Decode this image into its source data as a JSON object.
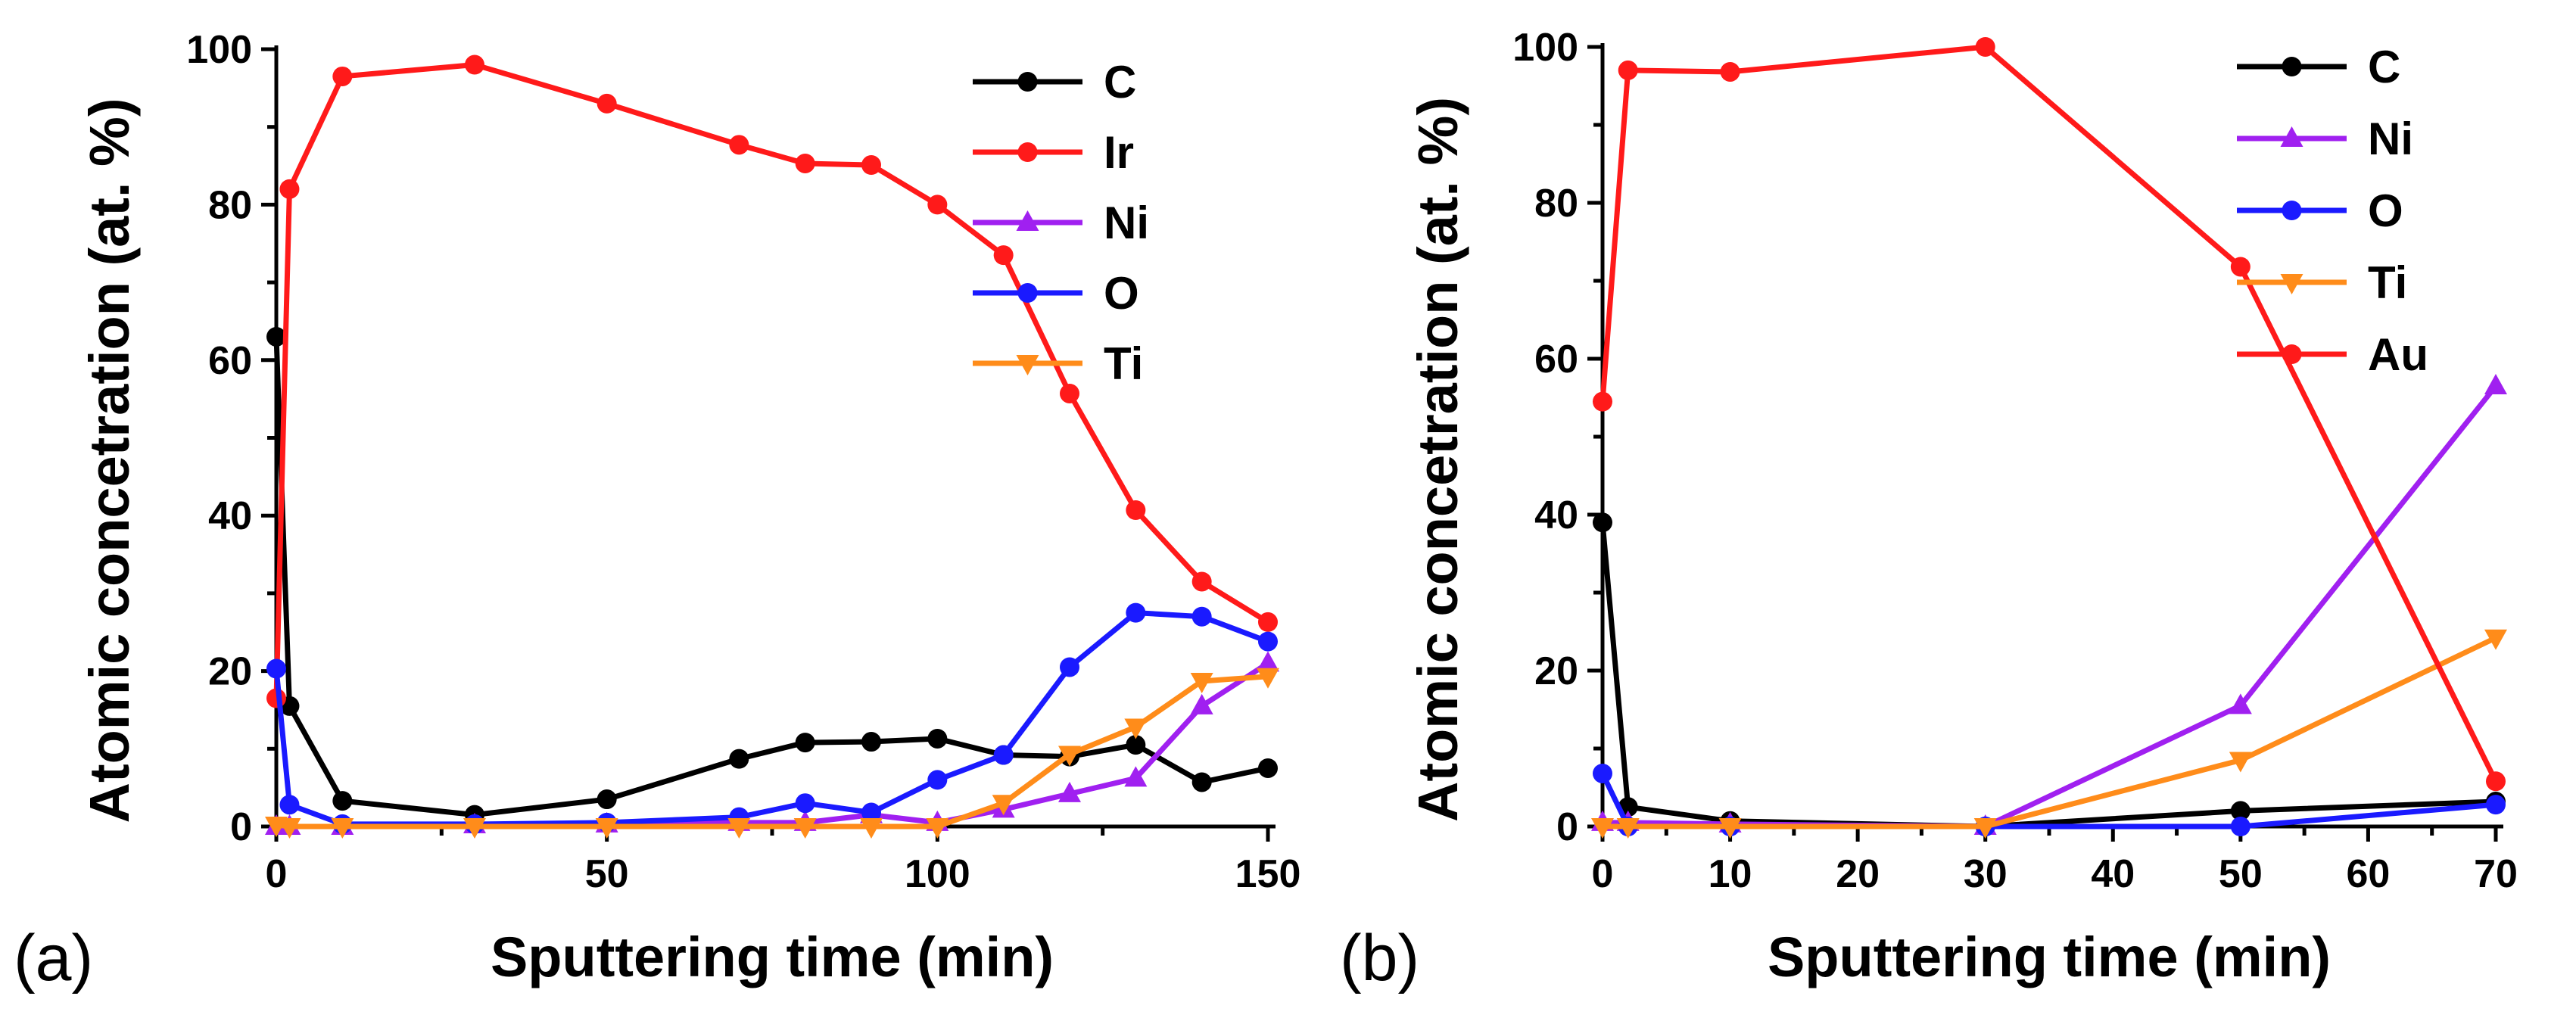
{
  "chart_data": [
    {
      "type": "line",
      "panel_label": "(a)",
      "xlabel": "Sputtering time (min)",
      "ylabel": "Atomic concetration (at. %)",
      "xlim": [
        0,
        150
      ],
      "ylim": [
        0,
        100
      ],
      "xticks": [
        0,
        50,
        100,
        150
      ],
      "yticks": [
        0,
        20,
        40,
        60,
        80,
        100
      ],
      "xtick_labels": [
        "0",
        "50",
        "100",
        "150"
      ],
      "ytick_labels": [
        "0",
        "20",
        "40",
        "60",
        "80",
        "100"
      ],
      "legend": "top-right",
      "series": [
        {
          "name": "C",
          "color": "#000000",
          "marker": "circle",
          "x": [
            0,
            2,
            10,
            30,
            50,
            70,
            80,
            90,
            100,
            110,
            120,
            130,
            140,
            150
          ],
          "y": [
            63,
            15.5,
            3.3,
            1.5,
            3.5,
            8.7,
            10.8,
            10.9,
            11.3,
            9.2,
            9.0,
            10.5,
            5.7,
            7.5
          ]
        },
        {
          "name": "Ir",
          "color": "#ff1a1a",
          "marker": "circle",
          "x": [
            0,
            2,
            10,
            30,
            50,
            70,
            80,
            90,
            100,
            110,
            120,
            130,
            140,
            150
          ],
          "y": [
            16.5,
            82,
            96.5,
            98,
            93,
            87.7,
            85.3,
            85.1,
            80,
            73.5,
            55.7,
            40.7,
            31.5,
            26.3
          ]
        },
        {
          "name": "Ni",
          "color": "#a020f0",
          "marker": "triangle-up",
          "x": [
            0,
            2,
            10,
            30,
            50,
            70,
            80,
            90,
            100,
            110,
            120,
            130,
            140,
            150
          ],
          "y": [
            0,
            0,
            0,
            0.2,
            0.3,
            0.5,
            0.5,
            1.5,
            0.5,
            2.2,
            4.2,
            6.2,
            15.5,
            21
          ]
        },
        {
          "name": "O",
          "color": "#1a1aff",
          "marker": "circle",
          "x": [
            0,
            2,
            10,
            30,
            50,
            70,
            80,
            90,
            100,
            110,
            120,
            130,
            140,
            150
          ],
          "y": [
            20.3,
            2.8,
            0.3,
            0.3,
            0.5,
            1.2,
            3.0,
            1.8,
            6.0,
            9.2,
            20.5,
            27.5,
            27,
            23.8
          ]
        },
        {
          "name": "Ti",
          "color": "#ff8c1a",
          "marker": "triangle-down",
          "x": [
            0,
            2,
            10,
            30,
            50,
            70,
            80,
            90,
            100,
            110,
            120,
            130,
            140,
            150
          ],
          "y": [
            0.2,
            0,
            0,
            0,
            0,
            0,
            0,
            0,
            0,
            3.0,
            9.3,
            12.8,
            18.7,
            19.3
          ]
        }
      ]
    },
    {
      "type": "line",
      "panel_label": "(b)",
      "xlabel": "Sputtering time (min)",
      "ylabel": "Atomic concetration (at. %)",
      "xlim": [
        0,
        70
      ],
      "ylim": [
        0,
        100
      ],
      "xticks": [
        0,
        10,
        20,
        30,
        40,
        50,
        60,
        70
      ],
      "yticks": [
        0,
        20,
        40,
        60,
        80,
        100
      ],
      "xtick_labels": [
        "0",
        "10",
        "20",
        "30",
        "40",
        "50",
        "60",
        "70"
      ],
      "ytick_labels": [
        "0",
        "20",
        "40",
        "60",
        "80",
        "100"
      ],
      "legend": "top-right",
      "series": [
        {
          "name": "C",
          "color": "#000000",
          "marker": "circle",
          "x": [
            0,
            2,
            10,
            30,
            50,
            70
          ],
          "y": [
            39,
            2.5,
            0.7,
            0,
            2.0,
            3.2
          ]
        },
        {
          "name": "Ni",
          "color": "#a020f0",
          "marker": "triangle-up",
          "x": [
            0,
            2,
            10,
            30,
            50,
            70
          ],
          "y": [
            0.5,
            0.5,
            0.3,
            0,
            15.5,
            56.5
          ]
        },
        {
          "name": "O",
          "color": "#1a1aff",
          "marker": "circle",
          "x": [
            0,
            2,
            10,
            30,
            50,
            70
          ],
          "y": [
            6.8,
            0,
            0,
            0,
            0,
            2.8
          ]
        },
        {
          "name": "Ti",
          "color": "#ff8c1a",
          "marker": "triangle-down",
          "x": [
            0,
            2,
            10,
            30,
            50,
            70
          ],
          "y": [
            0,
            0,
            0,
            0,
            8.5,
            24.2
          ]
        },
        {
          "name": "Au",
          "color": "#ff1a1a",
          "marker": "circle",
          "x": [
            0,
            2,
            10,
            30,
            50,
            70
          ],
          "y": [
            54.5,
            97,
            96.8,
            100,
            71.8,
            5.8
          ]
        }
      ]
    }
  ]
}
